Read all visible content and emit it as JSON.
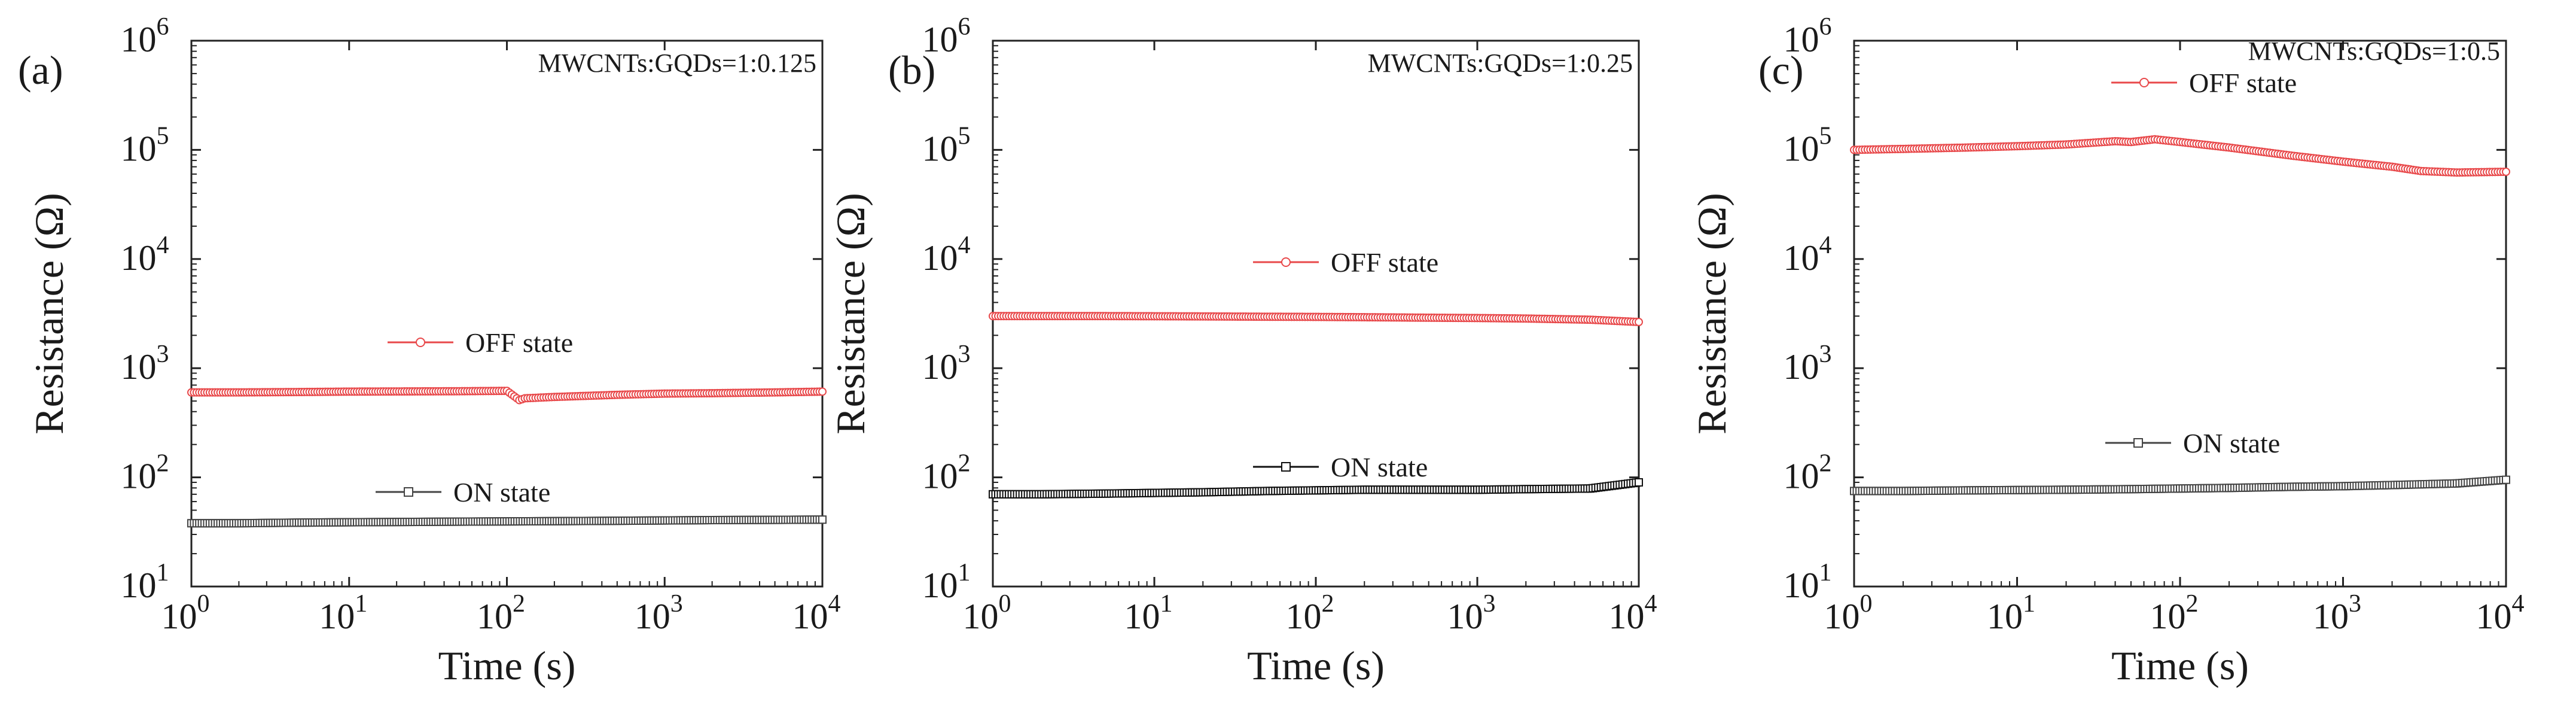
{
  "chart_data": [
    {
      "type": "scatter",
      "panel_label": "(a)",
      "annotation": "MWCNTs:GQDs=1:0.125",
      "xlabel": "Time (s)",
      "ylabel": "Resistance (Ω)",
      "xscale": "log",
      "yscale": "log",
      "xlim": [
        1,
        10000
      ],
      "ylim": [
        10,
        1000000
      ],
      "x_ticks": [
        "10",
        "10",
        "10",
        "10",
        "10"
      ],
      "x_tick_exponents": [
        "0",
        "1",
        "2",
        "3",
        "4"
      ],
      "y_ticks": [
        "10",
        "10",
        "10",
        "10",
        "10",
        "10"
      ],
      "y_tick_exponents": [
        "1",
        "2",
        "3",
        "4",
        "5",
        "6"
      ],
      "legend_position": "center",
      "series": [
        {
          "name": "OFF state",
          "color": "#e8484a",
          "marker": "circle",
          "x": [
            1,
            2,
            5,
            10,
            20,
            50,
            100,
            120,
            130,
            200,
            500,
            1000,
            2000,
            5000,
            10000
          ],
          "y": [
            600,
            600,
            605,
            610,
            612,
            615,
            620,
            510,
            530,
            545,
            570,
            585,
            590,
            600,
            610
          ]
        },
        {
          "name": "ON state",
          "color": "#444444",
          "marker": "square",
          "x": [
            1,
            2,
            5,
            10,
            20,
            50,
            100,
            200,
            500,
            1000,
            2000,
            5000,
            10000
          ],
          "y": [
            38,
            38,
            38.5,
            38.8,
            39,
            39.3,
            39.5,
            39.7,
            40,
            40.3,
            40.6,
            40.8,
            41
          ]
        }
      ]
    },
    {
      "type": "scatter",
      "panel_label": "(b)",
      "annotation": "MWCNTs:GQDs=1:0.25",
      "xlabel": "Time (s)",
      "ylabel": "Resistance (Ω)",
      "xscale": "log",
      "yscale": "log",
      "xlim": [
        1,
        10000
      ],
      "ylim": [
        10,
        1000000
      ],
      "x_ticks": [
        "10",
        "10",
        "10",
        "10",
        "10"
      ],
      "x_tick_exponents": [
        "0",
        "1",
        "2",
        "3",
        "4"
      ],
      "y_ticks": [
        "10",
        "10",
        "10",
        "10",
        "10",
        "10"
      ],
      "y_tick_exponents": [
        "1",
        "2",
        "3",
        "4",
        "5",
        "6"
      ],
      "legend_position": "center",
      "series": [
        {
          "name": "OFF state",
          "color": "#e8484a",
          "marker": "circle",
          "x": [
            1,
            2,
            5,
            10,
            20,
            50,
            100,
            200,
            500,
            1000,
            2000,
            5000,
            10000
          ],
          "y": [
            3000,
            3000,
            3000,
            2990,
            2980,
            2960,
            2950,
            2930,
            2900,
            2880,
            2850,
            2780,
            2650
          ]
        },
        {
          "name": "ON state",
          "color": "#111111",
          "marker": "square",
          "x": [
            1,
            2,
            5,
            10,
            20,
            50,
            100,
            200,
            500,
            1000,
            2000,
            5000,
            10000
          ],
          "y": [
            70,
            70,
            71,
            72,
            73,
            75,
            76,
            77,
            77,
            77,
            78,
            79,
            90
          ]
        }
      ]
    },
    {
      "type": "scatter",
      "panel_label": "(c)",
      "annotation": "MWCNTs:GQDs=1:0.5",
      "xlabel": "Time (s)",
      "ylabel": "Resistance (Ω)",
      "xscale": "log",
      "yscale": "log",
      "xlim": [
        1,
        10000
      ],
      "ylim": [
        10,
        1000000
      ],
      "x_ticks": [
        "10",
        "10",
        "10",
        "10",
        "10"
      ],
      "x_tick_exponents": [
        "0",
        "1",
        "2",
        "3",
        "4"
      ],
      "y_ticks": [
        "10",
        "10",
        "10",
        "10",
        "10",
        "10"
      ],
      "y_tick_exponents": [
        "1",
        "2",
        "3",
        "4",
        "5",
        "6"
      ],
      "legend_position": "top-center",
      "series": [
        {
          "name": "OFF state",
          "color": "#e8484a",
          "marker": "circle",
          "x": [
            1,
            2,
            5,
            10,
            20,
            40,
            50,
            70,
            100,
            200,
            500,
            1000,
            2000,
            3000,
            5000,
            10000
          ],
          "y": [
            100000,
            102000,
            105000,
            108000,
            112000,
            120000,
            118000,
            125000,
            118000,
            105000,
            88000,
            78000,
            70000,
            64000,
            62000,
            63000
          ]
        },
        {
          "name": "ON state",
          "color": "#444444",
          "marker": "square",
          "x": [
            1,
            2,
            5,
            10,
            20,
            50,
            100,
            200,
            500,
            1000,
            2000,
            5000,
            10000
          ],
          "y": [
            75,
            75,
            76,
            76.5,
            77,
            78,
            79,
            80,
            82,
            83,
            85,
            88,
            95
          ]
        }
      ]
    }
  ]
}
